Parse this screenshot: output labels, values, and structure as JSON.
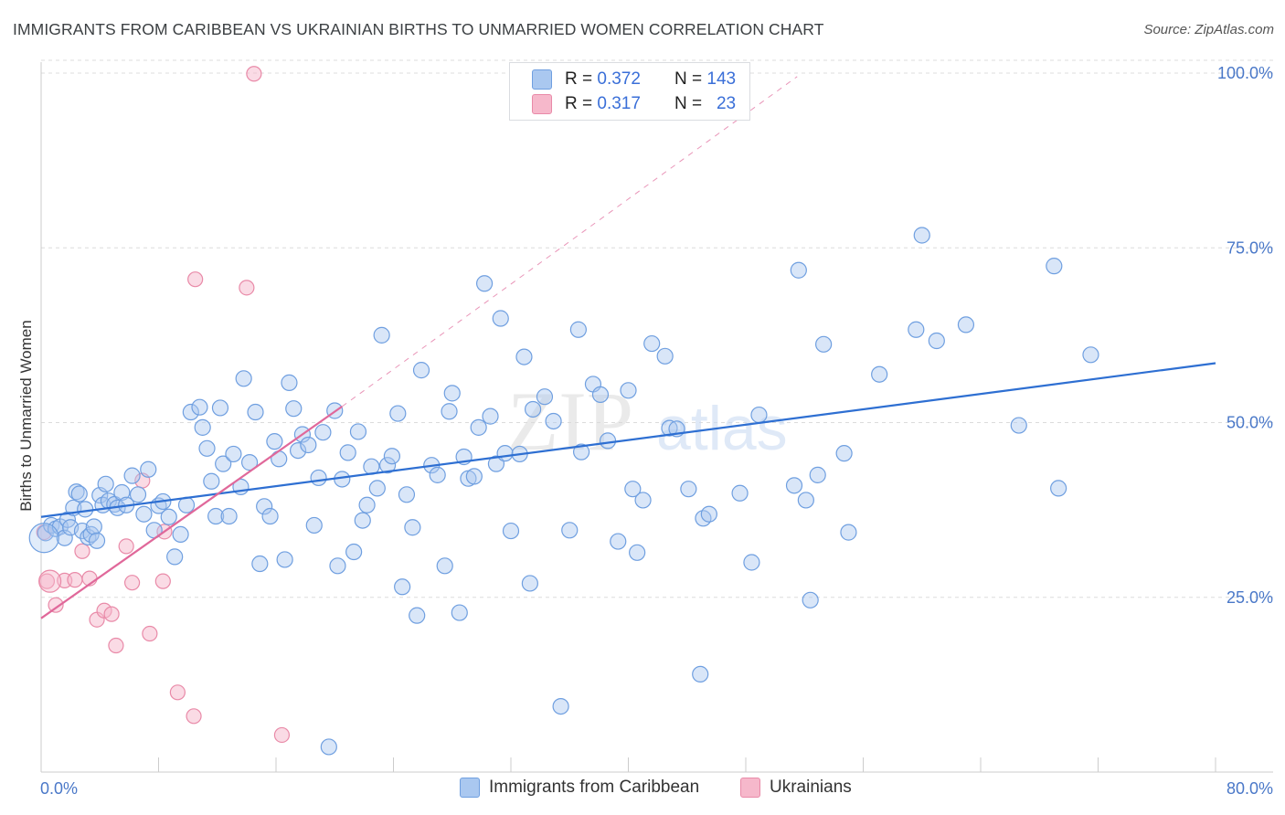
{
  "header": {
    "title": "IMMIGRANTS FROM CARIBBEAN VS UKRAINIAN BIRTHS TO UNMARRIED WOMEN CORRELATION CHART",
    "source": "Source: ZipAtlas.com"
  },
  "legend": {
    "rows": [
      {
        "r_label": "R =",
        "r_value": "0.372",
        "n_label": "N =",
        "n_value": "143"
      },
      {
        "r_label": "R =",
        "r_value": "0.317",
        "n_label": "N =",
        "n_value": "23"
      }
    ]
  },
  "bottom_legend": [
    "Immigrants from Caribbean",
    "Ukrainians"
  ],
  "watermark": {
    "zip": "ZIP",
    "atlas": "atlas"
  },
  "colors": {
    "blue_fill": "#aac8f0",
    "blue_stroke": "#6f9fe0",
    "blue_line": "#2e6fd2",
    "pink_fill": "#f6b8cb",
    "pink_stroke": "#e98aa8",
    "pink_line": "#e0689a",
    "axis_text": "#4a78c8",
    "grid": "#dcdcdc"
  },
  "chart_data": {
    "type": "scatter",
    "title": "IMMIGRANTS FROM CARIBBEAN VS UKRAINIAN BIRTHS TO UNMARRIED WOMEN CORRELATION CHART",
    "xlabel": "",
    "ylabel": "Births to Unmarried Women",
    "xlim": [
      0,
      80
    ],
    "ylim": [
      0,
      100
    ],
    "x_tick_labels": [
      "0.0%",
      "80.0%"
    ],
    "y_tick_labels": [
      "25.0%",
      "50.0%",
      "75.0%",
      "100.0%"
    ],
    "y_ticks": [
      25,
      50,
      75,
      100
    ],
    "grid": true,
    "legend_placement": "top-center",
    "series": [
      {
        "name": "Immigrants from Caribbean",
        "r": 0.372,
        "n": 143,
        "trend": {
          "x": [
            0,
            80
          ],
          "y": [
            36.5,
            58.5
          ]
        },
        "points": [
          [
            0.3,
            34.2
          ],
          [
            0.7,
            35.3
          ],
          [
            1.0,
            34.8
          ],
          [
            1.3,
            35.1
          ],
          [
            1.6,
            33.5
          ],
          [
            1.8,
            36.1
          ],
          [
            2.0,
            35.0
          ],
          [
            2.2,
            37.8
          ],
          [
            2.4,
            40.1
          ],
          [
            2.6,
            39.8
          ],
          [
            2.8,
            34.5
          ],
          [
            3.0,
            37.6
          ],
          [
            3.2,
            33.6
          ],
          [
            3.4,
            34.0
          ],
          [
            3.6,
            35.1
          ],
          [
            3.8,
            33.1
          ],
          [
            4.0,
            39.6
          ],
          [
            4.2,
            38.2
          ],
          [
            4.4,
            41.2
          ],
          [
            4.6,
            38.8
          ],
          [
            5.0,
            38.3
          ],
          [
            5.2,
            37.8
          ],
          [
            5.5,
            40.0
          ],
          [
            5.8,
            38.2
          ],
          [
            6.2,
            42.4
          ],
          [
            6.6,
            39.7
          ],
          [
            7.0,
            36.9
          ],
          [
            7.3,
            43.3
          ],
          [
            7.7,
            34.6
          ],
          [
            8.0,
            38.1
          ],
          [
            8.3,
            38.7
          ],
          [
            8.7,
            36.5
          ],
          [
            9.1,
            30.8
          ],
          [
            9.5,
            34.0
          ],
          [
            9.9,
            38.2
          ],
          [
            10.2,
            51.5
          ],
          [
            10.8,
            52.2
          ],
          [
            11.0,
            49.3
          ],
          [
            11.3,
            46.3
          ],
          [
            11.6,
            41.6
          ],
          [
            11.9,
            36.6
          ],
          [
            12.2,
            52.1
          ],
          [
            12.4,
            44.1
          ],
          [
            12.8,
            36.6
          ],
          [
            13.1,
            45.5
          ],
          [
            13.6,
            40.8
          ],
          [
            13.8,
            56.3
          ],
          [
            14.2,
            44.3
          ],
          [
            14.6,
            51.5
          ],
          [
            14.9,
            29.8
          ],
          [
            15.2,
            38.0
          ],
          [
            15.6,
            36.6
          ],
          [
            15.9,
            47.3
          ],
          [
            16.2,
            44.8
          ],
          [
            16.6,
            30.4
          ],
          [
            16.9,
            55.7
          ],
          [
            17.2,
            52.0
          ],
          [
            17.5,
            46.0
          ],
          [
            17.8,
            48.3
          ],
          [
            18.2,
            46.8
          ],
          [
            18.6,
            35.3
          ],
          [
            18.9,
            42.1
          ],
          [
            19.2,
            48.6
          ],
          [
            19.6,
            3.6
          ],
          [
            20.0,
            51.7
          ],
          [
            20.2,
            29.5
          ],
          [
            20.5,
            41.9
          ],
          [
            20.9,
            45.7
          ],
          [
            21.3,
            31.5
          ],
          [
            21.6,
            48.7
          ],
          [
            21.9,
            36.0
          ],
          [
            22.2,
            38.2
          ],
          [
            22.5,
            43.7
          ],
          [
            22.9,
            40.6
          ],
          [
            23.2,
            62.5
          ],
          [
            23.6,
            43.9
          ],
          [
            23.9,
            45.2
          ],
          [
            24.3,
            51.3
          ],
          [
            24.6,
            26.5
          ],
          [
            24.9,
            39.7
          ],
          [
            25.3,
            35.0
          ],
          [
            25.6,
            22.4
          ],
          [
            25.9,
            57.5
          ],
          [
            26.6,
            43.9
          ],
          [
            27.0,
            42.5
          ],
          [
            27.5,
            29.5
          ],
          [
            27.8,
            51.6
          ],
          [
            28.0,
            54.2
          ],
          [
            28.5,
            22.8
          ],
          [
            28.8,
            45.1
          ],
          [
            29.1,
            42.0
          ],
          [
            29.5,
            42.3
          ],
          [
            29.8,
            49.3
          ],
          [
            30.2,
            69.9
          ],
          [
            30.6,
            50.9
          ],
          [
            31.0,
            44.1
          ],
          [
            31.3,
            64.9
          ],
          [
            31.6,
            45.6
          ],
          [
            32.0,
            34.5
          ],
          [
            32.6,
            45.5
          ],
          [
            32.9,
            59.4
          ],
          [
            33.3,
            27.0
          ],
          [
            33.5,
            51.9
          ],
          [
            34.3,
            53.7
          ],
          [
            34.9,
            50.2
          ],
          [
            35.4,
            9.4
          ],
          [
            36.0,
            34.6
          ],
          [
            36.6,
            63.3
          ],
          [
            36.8,
            45.8
          ],
          [
            37.6,
            55.5
          ],
          [
            38.1,
            54.0
          ],
          [
            38.6,
            47.4
          ],
          [
            39.3,
            33.0
          ],
          [
            40.0,
            54.6
          ],
          [
            40.3,
            40.5
          ],
          [
            40.6,
            31.4
          ],
          [
            41.0,
            38.9
          ],
          [
            41.6,
            61.3
          ],
          [
            42.5,
            59.5
          ],
          [
            42.8,
            49.2
          ],
          [
            43.3,
            49.1
          ],
          [
            44.1,
            40.5
          ],
          [
            44.9,
            14.0
          ],
          [
            45.1,
            36.3
          ],
          [
            45.5,
            36.9
          ],
          [
            47.6,
            39.9
          ],
          [
            48.4,
            30.0
          ],
          [
            48.9,
            51.1
          ],
          [
            51.3,
            41.0
          ],
          [
            51.6,
            71.8
          ],
          [
            52.1,
            38.9
          ],
          [
            52.4,
            24.6
          ],
          [
            52.9,
            42.5
          ],
          [
            53.3,
            61.2
          ],
          [
            54.7,
            45.6
          ],
          [
            55.0,
            34.3
          ],
          [
            57.1,
            56.9
          ],
          [
            59.6,
            63.3
          ],
          [
            60.0,
            76.8
          ],
          [
            61.0,
            61.7
          ],
          [
            63.0,
            64.0
          ],
          [
            66.6,
            49.6
          ],
          [
            69.0,
            72.4
          ],
          [
            69.3,
            40.6
          ],
          [
            71.5,
            59.7
          ]
        ]
      },
      {
        "name": "Ukrainians",
        "r": 0.317,
        "n": 23,
        "trend": {
          "x": [
            0,
            20.5
          ],
          "y": [
            22.0,
            52.3
          ]
        },
        "trend_dashed": {
          "x": [
            20.5,
            51.5
          ],
          "y": [
            52.3,
            99.5
          ]
        },
        "points": [
          [
            0.2,
            34.3
          ],
          [
            0.4,
            27.3
          ],
          [
            1.0,
            23.9
          ],
          [
            1.6,
            27.4
          ],
          [
            2.3,
            27.5
          ],
          [
            2.8,
            31.6
          ],
          [
            3.3,
            27.7
          ],
          [
            3.8,
            21.8
          ],
          [
            4.3,
            23.1
          ],
          [
            4.8,
            22.6
          ],
          [
            5.1,
            18.1
          ],
          [
            5.8,
            32.3
          ],
          [
            6.2,
            27.1
          ],
          [
            6.9,
            41.7
          ],
          [
            7.4,
            19.8
          ],
          [
            8.3,
            27.3
          ],
          [
            8.4,
            34.4
          ],
          [
            9.3,
            11.4
          ],
          [
            10.4,
            8.0
          ],
          [
            10.5,
            70.5
          ],
          [
            14.0,
            69.3
          ],
          [
            14.5,
            99.9
          ],
          [
            16.4,
            5.3
          ]
        ]
      }
    ]
  }
}
